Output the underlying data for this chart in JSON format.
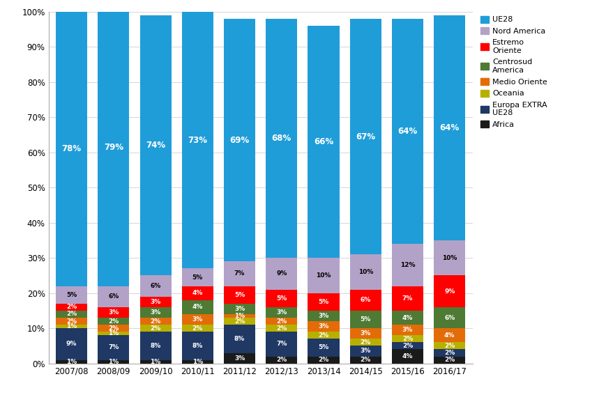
{
  "years": [
    "2007/08",
    "2008/09",
    "2009/10",
    "2010/11",
    "2011/12",
    "2012/13",
    "2013/14",
    "2014/15",
    "2015/16",
    "2016/17"
  ],
  "segments": [
    {
      "label": "Africa",
      "color": "#1a1a1a",
      "values": [
        1,
        1,
        1,
        1,
        3,
        2,
        2,
        2,
        4,
        2
      ]
    },
    {
      "label": "Europa EXTRA UE28",
      "color": "#1f3864",
      "values": [
        9,
        7,
        8,
        8,
        8,
        7,
        5,
        3,
        2,
        2
      ]
    },
    {
      "label": "Oceania",
      "color": "#b8b000",
      "values": [
        1,
        1,
        2,
        2,
        2,
        2,
        2,
        2,
        2,
        2
      ]
    },
    {
      "label": "Medio Oriente",
      "color": "#e36c09",
      "values": [
        2,
        2,
        2,
        3,
        1,
        2,
        3,
        3,
        3,
        4
      ]
    },
    {
      "label": "Centrosud America",
      "color": "#4e7a34",
      "values": [
        2,
        2,
        3,
        4,
        3,
        3,
        3,
        5,
        4,
        6
      ]
    },
    {
      "label": "Estremo Oriente",
      "color": "#ff0000",
      "values": [
        2,
        3,
        3,
        4,
        5,
        5,
        5,
        6,
        7,
        9
      ]
    },
    {
      "label": "Nord America",
      "color": "#b3a2c7",
      "values": [
        5,
        6,
        6,
        5,
        7,
        9,
        10,
        10,
        12,
        10
      ]
    },
    {
      "label": "UE28",
      "color": "#1f9dd9",
      "values": [
        78,
        79,
        74,
        73,
        69,
        68,
        66,
        67,
        64,
        64
      ]
    }
  ],
  "background_color": "#ffffff",
  "figsize": [
    8.69,
    5.67
  ],
  "dpi": 100,
  "bar_width": 0.75,
  "legend_labels": [
    "UE28",
    "Nord America",
    "Estremo\nOriente",
    "Centrosud\nAmerica",
    "Medio Oriente",
    "Oceania",
    "Europa EXTRA\nUE28",
    "Africa"
  ]
}
